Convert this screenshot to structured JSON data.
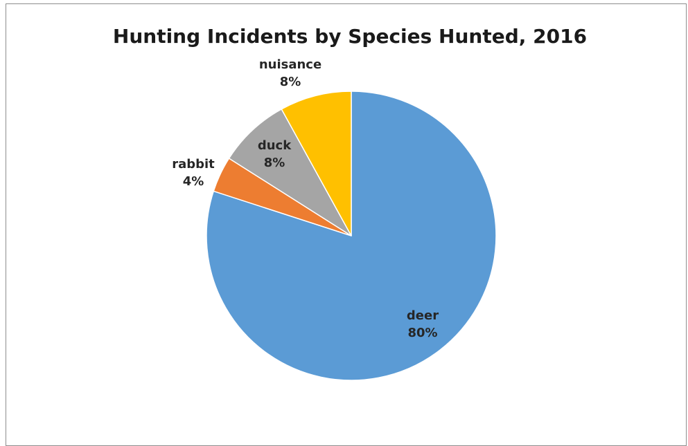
{
  "chart_data": {
    "type": "pie",
    "title": "Hunting Incidents by Species Hunted, 2016",
    "start_angle_deg": 0,
    "direction": "clockwise",
    "slices": [
      {
        "name": "deer",
        "value": 80,
        "label": "80%",
        "color": "#5b9bd5"
      },
      {
        "name": "rabbit",
        "value": 4,
        "label": "4%",
        "color": "#ed7d31"
      },
      {
        "name": "duck",
        "value": 8,
        "label": "8%",
        "color": "#a5a5a5"
      },
      {
        "name": "nuisance",
        "value": 8,
        "label": "8%",
        "color": "#ffc000"
      }
    ]
  }
}
